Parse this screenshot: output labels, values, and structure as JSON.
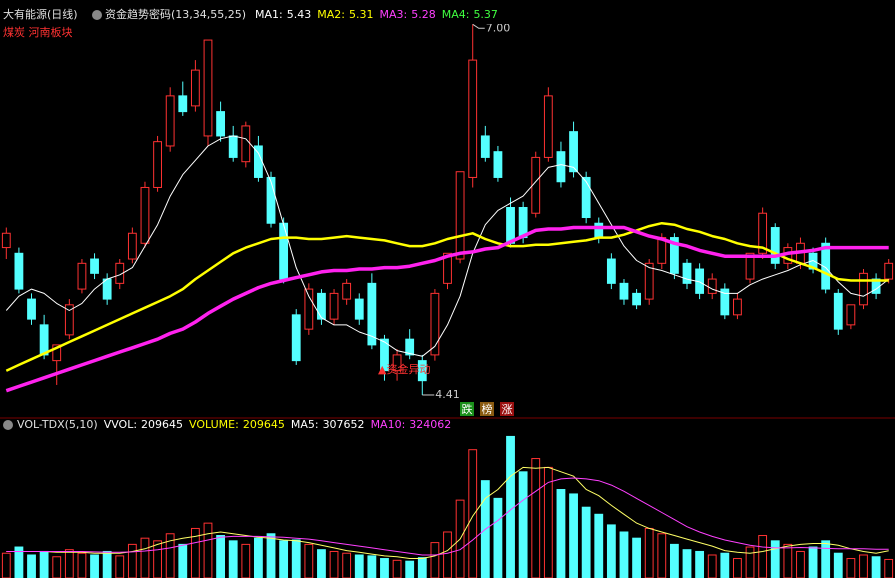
{
  "chart_data": {
    "type": "candlestick",
    "title": "大有能源(日线)",
    "indicator": "资金趋势密码(13,34,55,25)",
    "sector": "煤炭 河南板块",
    "ma": [
      {
        "name": "MA1:",
        "value": 5.43,
        "color": "#ffffff"
      },
      {
        "name": "MA2:",
        "value": 5.31,
        "color": "#ffff00"
      },
      {
        "name": "MA3:",
        "value": 5.28,
        "color": "#ff40ff"
      },
      {
        "name": "MA4:",
        "value": 5.37,
        "color": "#40ff40"
      }
    ],
    "up_color": "#ff3232",
    "down_color": "#54ffff",
    "candles": {
      "open": [
        5.44,
        5.4,
        5.08,
        4.9,
        4.65,
        4.83,
        5.15,
        5.36,
        5.22,
        5.19,
        5.36,
        5.47,
        5.86,
        6.15,
        6.5,
        6.43,
        6.22,
        6.39,
        6.22,
        6.04,
        6.15,
        5.93,
        5.61,
        4.97,
        4.87,
        5.12,
        4.94,
        5.08,
        5.08,
        5.19,
        4.8,
        4.58,
        4.8,
        4.65,
        4.69,
        5.19,
        5.36,
        5.93,
        6.22,
        6.11,
        5.72,
        5.72,
        5.68,
        6.07,
        6.11,
        6.25,
        5.93,
        5.61,
        5.36,
        5.19,
        5.12,
        5.08,
        5.33,
        5.51,
        5.33,
        5.29,
        5.12,
        5.15,
        4.97,
        5.22,
        5.4,
        5.58,
        5.33,
        5.33,
        5.4,
        5.47,
        5.12,
        4.9,
        5.04,
        5.22,
        5.22
      ],
      "high": [
        5.58,
        5.44,
        5.12,
        4.97,
        4.76,
        5.08,
        5.36,
        5.4,
        5.26,
        5.36,
        5.58,
        5.9,
        6.22,
        6.56,
        6.6,
        6.75,
        6.89,
        6.46,
        6.29,
        6.32,
        6.22,
        5.97,
        5.65,
        5.01,
        5.19,
        5.15,
        5.15,
        5.22,
        5.12,
        5.26,
        4.83,
        4.73,
        4.87,
        4.69,
        5.15,
        5.4,
        5.97,
        7.0,
        6.29,
        6.15,
        5.79,
        5.76,
        6.11,
        6.56,
        6.18,
        6.32,
        5.97,
        5.65,
        5.4,
        5.22,
        5.15,
        5.36,
        5.54,
        5.54,
        5.36,
        5.33,
        5.26,
        5.19,
        5.12,
        5.4,
        5.72,
        5.61,
        5.47,
        5.51,
        5.44,
        5.51,
        5.15,
        5.04,
        5.29,
        5.26,
        5.36
      ],
      "low": [
        5.36,
        5.12,
        4.9,
        4.66,
        4.48,
        4.8,
        5.12,
        5.22,
        5.04,
        5.15,
        5.33,
        5.44,
        5.83,
        6.11,
        6.36,
        6.39,
        6.15,
        6.18,
        6.04,
        6.0,
        5.9,
        5.58,
        5.19,
        4.62,
        4.83,
        4.9,
        4.9,
        5.04,
        4.9,
        4.73,
        4.51,
        4.51,
        4.66,
        4.41,
        4.65,
        5.15,
        5.33,
        5.86,
        6.04,
        5.9,
        5.44,
        5.47,
        5.65,
        6.04,
        5.86,
        5.93,
        5.61,
        5.47,
        5.15,
        5.04,
        5.01,
        5.04,
        5.29,
        5.22,
        5.15,
        5.08,
        5.08,
        4.94,
        4.94,
        5.19,
        5.36,
        5.29,
        5.29,
        5.29,
        5.26,
        5.12,
        4.83,
        4.87,
        5.01,
        5.08,
        5.19
      ],
      "close": [
        5.54,
        5.15,
        4.94,
        4.69,
        4.76,
        5.04,
        5.33,
        5.26,
        5.08,
        5.33,
        5.54,
        5.86,
        6.18,
        6.5,
        6.39,
        6.68,
        6.89,
        6.22,
        6.07,
        6.29,
        5.93,
        5.61,
        5.22,
        4.65,
        5.15,
        4.94,
        5.12,
        5.19,
        4.94,
        4.76,
        4.58,
        4.69,
        4.69,
        4.51,
        5.12,
        5.4,
        5.97,
        6.75,
        6.07,
        5.93,
        5.47,
        5.51,
        6.07,
        6.5,
        5.9,
        5.97,
        5.65,
        5.51,
        5.19,
        5.08,
        5.04,
        5.33,
        5.51,
        5.26,
        5.19,
        5.12,
        5.22,
        4.97,
        5.08,
        5.4,
        5.68,
        5.33,
        5.44,
        5.47,
        5.29,
        5.15,
        4.87,
        5.04,
        5.26,
        5.12,
        5.33
      ]
    },
    "lines": [
      {
        "color": "#ffffff",
        "width": 1,
        "values": [
          5.0,
          5.1,
          5.15,
          5.12,
          5.05,
          5.0,
          5.05,
          5.15,
          5.22,
          5.25,
          5.3,
          5.45,
          5.6,
          5.8,
          5.95,
          6.05,
          6.15,
          6.2,
          6.22,
          6.2,
          6.1,
          5.9,
          5.6,
          5.3,
          5.1,
          4.95,
          4.9,
          4.9,
          4.85,
          4.82,
          4.78,
          4.72,
          4.7,
          4.68,
          4.75,
          4.9,
          5.1,
          5.4,
          5.6,
          5.7,
          5.75,
          5.8,
          5.9,
          6.0,
          6.02,
          6.0,
          5.9,
          5.75,
          5.6,
          5.45,
          5.35,
          5.3,
          5.28,
          5.25,
          5.22,
          5.2,
          5.15,
          5.12,
          5.12,
          5.18,
          5.22,
          5.25,
          5.28,
          5.32,
          5.35,
          5.3,
          5.2,
          5.12,
          5.1,
          5.15,
          5.22
        ]
      },
      {
        "color": "#ffff00",
        "width": 2.5,
        "values": [
          4.58,
          4.62,
          4.66,
          4.7,
          4.74,
          4.78,
          4.82,
          4.86,
          4.9,
          4.94,
          4.98,
          5.02,
          5.06,
          5.1,
          5.15,
          5.22,
          5.28,
          5.34,
          5.4,
          5.44,
          5.47,
          5.5,
          5.51,
          5.51,
          5.5,
          5.5,
          5.51,
          5.52,
          5.51,
          5.5,
          5.49,
          5.47,
          5.45,
          5.45,
          5.47,
          5.5,
          5.52,
          5.54,
          5.5,
          5.47,
          5.45,
          5.45,
          5.46,
          5.46,
          5.47,
          5.48,
          5.49,
          5.51,
          5.51,
          5.53,
          5.56,
          5.59,
          5.61,
          5.6,
          5.57,
          5.55,
          5.52,
          5.5,
          5.47,
          5.45,
          5.44,
          5.4,
          5.36,
          5.33,
          5.3,
          5.26,
          5.22,
          5.21,
          5.21,
          5.21,
          5.21
        ]
      },
      {
        "color": "#ff22ee",
        "width": 3.5,
        "values": [
          4.44,
          4.47,
          4.5,
          4.53,
          4.56,
          4.59,
          4.62,
          4.65,
          4.68,
          4.71,
          4.74,
          4.77,
          4.8,
          4.84,
          4.87,
          4.92,
          4.98,
          5.03,
          5.08,
          5.12,
          5.16,
          5.19,
          5.21,
          5.23,
          5.25,
          5.27,
          5.28,
          5.28,
          5.29,
          5.29,
          5.3,
          5.3,
          5.31,
          5.33,
          5.35,
          5.38,
          5.4,
          5.41,
          5.43,
          5.44,
          5.48,
          5.52,
          5.56,
          5.57,
          5.57,
          5.58,
          5.58,
          5.58,
          5.58,
          5.58,
          5.55,
          5.52,
          5.5,
          5.47,
          5.45,
          5.42,
          5.4,
          5.38,
          5.38,
          5.38,
          5.38,
          5.38,
          5.4,
          5.41,
          5.42,
          5.44,
          5.44,
          5.44,
          5.44,
          5.44,
          5.44
        ]
      }
    ],
    "ylim": [
      4.34,
      7.1
    ],
    "high_label": {
      "value": 7,
      "label": "7.00"
    },
    "low_label": 4.41,
    "signal": "▲资金异动",
    "tags": [
      {
        "text": "跌",
        "color": "#1a8f1a"
      },
      {
        "text": "榜",
        "color": "#8a5a10"
      },
      {
        "text": "涨",
        "color": "#9a1010"
      }
    ],
    "volume": {
      "title": "VOL-TDX(5,10)",
      "indicators": [
        {
          "name": "VVOL:",
          "value": 209645,
          "color": "#ffffff"
        },
        {
          "name": "VOLUME:",
          "value": 209645,
          "color": "#ffff00"
        },
        {
          "name": "MA5:",
          "value": 307652,
          "color": "#ffffff"
        },
        {
          "name": "MA10:",
          "value": 324062,
          "color": "#ff40ff"
        }
      ],
      "values": [
        280000,
        350000,
        260000,
        300000,
        240000,
        320000,
        280000,
        260000,
        300000,
        250000,
        380000,
        450000,
        420000,
        500000,
        380000,
        560000,
        620000,
        480000,
        420000,
        380000,
        450000,
        500000,
        420000,
        430000,
        380000,
        320000,
        300000,
        280000,
        260000,
        250000,
        220000,
        200000,
        190000,
        230000,
        400000,
        520000,
        880000,
        1450000,
        1100000,
        900000,
        1600000,
        1200000,
        1350000,
        1250000,
        1000000,
        950000,
        800000,
        720000,
        600000,
        520000,
        450000,
        560000,
        500000,
        380000,
        320000,
        300000,
        260000,
        280000,
        220000,
        350000,
        480000,
        420000,
        380000,
        300000,
        350000,
        420000,
        280000,
        220000,
        260000,
        240000,
        209645
      ],
      "lines": [
        {
          "color": "#ffff66",
          "values": [
            300000,
            300000,
            300000,
            300000,
            290000,
            290000,
            290000,
            280000,
            280000,
            280000,
            300000,
            330000,
            380000,
            420000,
            450000,
            470000,
            500000,
            520000,
            500000,
            480000,
            460000,
            450000,
            430000,
            420000,
            400000,
            370000,
            340000,
            310000,
            290000,
            270000,
            250000,
            240000,
            220000,
            220000,
            250000,
            310000,
            440000,
            700000,
            900000,
            1000000,
            1150000,
            1250000,
            1240000,
            1250000,
            1200000,
            1150000,
            1000000,
            930000,
            820000,
            720000,
            620000,
            560000,
            520000,
            480000,
            440000,
            400000,
            360000,
            310000,
            290000,
            280000,
            300000,
            330000,
            360000,
            380000,
            390000,
            390000,
            370000,
            330000,
            300000,
            280000,
            307652
          ]
        },
        {
          "color": "#ff40ff",
          "values": [
            300000,
            300000,
            300000,
            300000,
            300000,
            300000,
            300000,
            295000,
            290000,
            290000,
            295000,
            305000,
            320000,
            340000,
            370000,
            400000,
            430000,
            460000,
            470000,
            470000,
            470000,
            465000,
            460000,
            450000,
            440000,
            420000,
            400000,
            380000,
            360000,
            340000,
            320000,
            300000,
            280000,
            260000,
            260000,
            280000,
            320000,
            430000,
            550000,
            650000,
            770000,
            880000,
            980000,
            1080000,
            1120000,
            1130000,
            1120000,
            1100000,
            1050000,
            980000,
            900000,
            820000,
            740000,
            660000,
            580000,
            520000,
            470000,
            430000,
            400000,
            370000,
            350000,
            340000,
            340000,
            345000,
            340000,
            335000,
            330000,
            330000,
            330000,
            325000,
            324062
          ]
        }
      ],
      "ylim": [
        0,
        1650000
      ]
    }
  }
}
